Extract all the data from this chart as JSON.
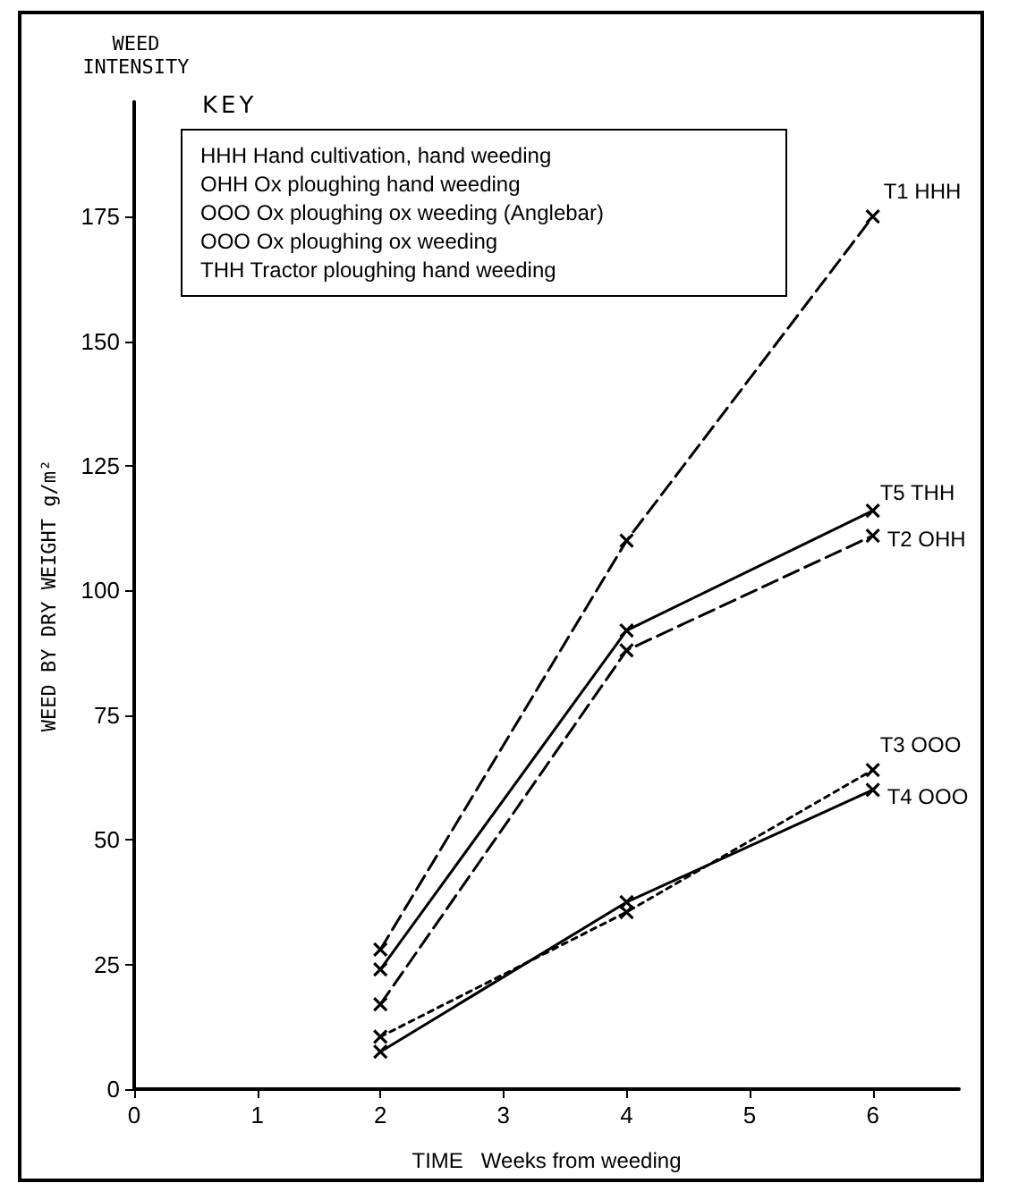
{
  "chart_data": {
    "type": "line",
    "x": [
      2,
      4,
      6
    ],
    "series": [
      {
        "name": "T1 HHH",
        "color": "#000000",
        "values": [
          28,
          110,
          175
        ],
        "line_style": "dashed"
      },
      {
        "name": "T2 OHH",
        "color": "#000000",
        "values": [
          17,
          88,
          111
        ],
        "line_style": "dashed"
      },
      {
        "name": "T3 OOO",
        "color": "#000000",
        "values": [
          10.5,
          35.5,
          64
        ],
        "line_style": "dotted"
      },
      {
        "name": "T4 OOO",
        "color": "#000000",
        "values": [
          7.5,
          37.5,
          60
        ],
        "line_style": "solid"
      },
      {
        "name": "T5 THH",
        "color": "#000000",
        "values": [
          24,
          92,
          116
        ],
        "line_style": "solid"
      }
    ],
    "xlabel": "TIME   Weeks from weeding",
    "ylabel": "WEED BY DRY WEIGHT g/m²",
    "xlim": [
      0,
      6.7
    ],
    "xticks": [
      0,
      1,
      2,
      3,
      4,
      5,
      6
    ],
    "ylim": [
      0,
      198
    ],
    "yticks": [
      0,
      25,
      50,
      75,
      100,
      125,
      150,
      175
    ],
    "marker": "cross",
    "grid": false,
    "legend": false,
    "annotations": [
      "WEED INTENSITY",
      "KEY",
      "HHH  Hand cultivation, hand weeding",
      "OHH  Ox ploughing  hand weeding",
      "OOO  Ox ploughing  ox weeding  (Anglebar)",
      "OOO  Ox ploughing  ox weeding",
      "THH  Tractor ploughing  hand weeding"
    ]
  }
}
